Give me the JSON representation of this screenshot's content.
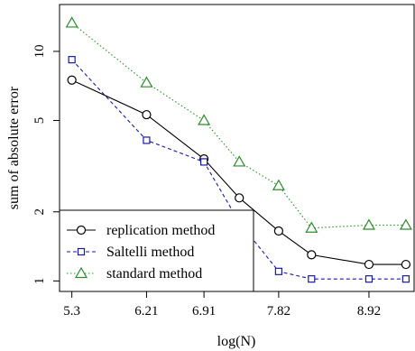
{
  "chart_data": {
    "type": "line",
    "xlabel": "log(N)",
    "ylabel": "sum of absolute error",
    "x_ticks": [
      "5.3",
      "6.21",
      "6.91",
      "7.82",
      "8.92"
    ],
    "x_tick_values": [
      5.3,
      6.21,
      6.91,
      7.82,
      8.92
    ],
    "y_ticks": [
      "1",
      "2",
      "5",
      "10"
    ],
    "y_tick_values": [
      1,
      2,
      5,
      10
    ],
    "y_scale": "log",
    "xlim": [
      5.15,
      9.47
    ],
    "ylim": [
      0.9,
      16
    ],
    "grid": false,
    "legend_position": "bottom-left",
    "series": [
      {
        "name": "replication method",
        "marker": "circle",
        "line_style": "solid",
        "color": "#000000",
        "x": [
          5.3,
          6.21,
          6.91,
          7.34,
          7.82,
          8.22,
          8.92,
          9.37
        ],
        "y": [
          7.5,
          5.3,
          3.4,
          2.3,
          1.65,
          1.3,
          1.18,
          1.18
        ]
      },
      {
        "name": "Saltelli method",
        "marker": "square",
        "line_style": "dashed",
        "color": "#1a1aa6",
        "x": [
          5.3,
          6.21,
          6.91,
          7.34,
          7.82,
          8.22,
          8.92,
          9.37
        ],
        "y": [
          9.2,
          4.1,
          3.3,
          1.8,
          1.1,
          1.02,
          1.02,
          1.02
        ]
      },
      {
        "name": "standard method",
        "marker": "triangle",
        "line_style": "dotted",
        "color": "#2e8b2e",
        "x": [
          5.3,
          6.21,
          6.91,
          7.34,
          7.82,
          8.22,
          8.92,
          9.37
        ],
        "y": [
          13.3,
          7.3,
          5.0,
          3.3,
          2.6,
          1.7,
          1.75,
          1.75
        ]
      }
    ]
  }
}
